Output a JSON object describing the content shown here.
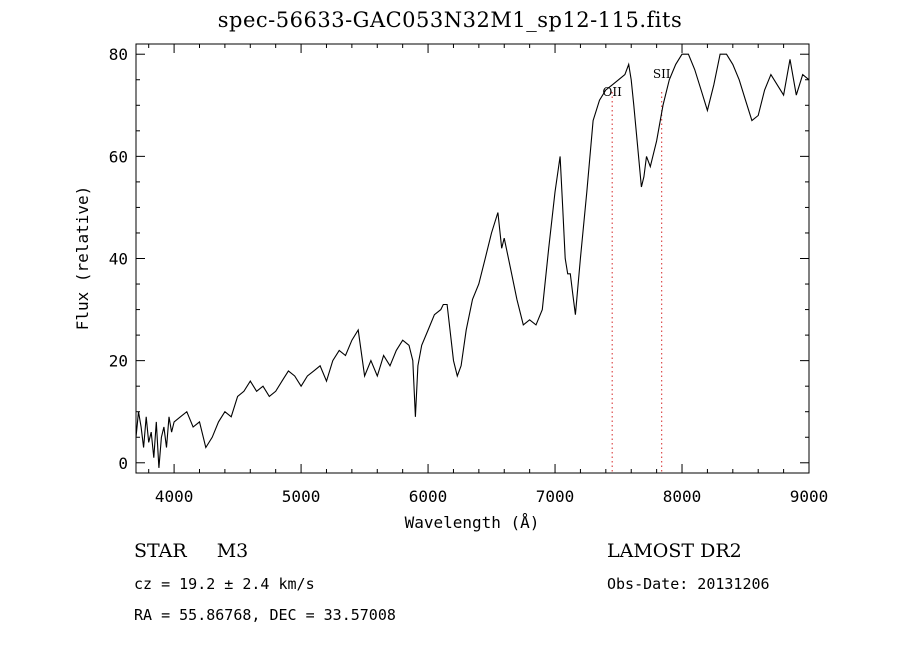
{
  "title": "spec-56633-GAC053N32M1_sp12-115.fits",
  "info": {
    "class": "STAR",
    "subclass": "M3",
    "cz": "cz = 19.2 ± 2.4 km/s",
    "coords": "RA =  55.86768, DEC =  33.57008",
    "survey": "LAMOST DR2",
    "obs_date": "Obs-Date: 20131206"
  },
  "chart_data": {
    "type": "line",
    "title": "spec-56633-GAC053N32M1_sp12-115.fits",
    "xlabel": "Wavelength (Å)",
    "ylabel": "Flux (relative)",
    "xlim": [
      3700,
      9000
    ],
    "ylim": [
      -2,
      82
    ],
    "xticks": [
      4000,
      5000,
      6000,
      7000,
      8000,
      9000
    ],
    "yticks": [
      0,
      20,
      40,
      60,
      80
    ],
    "grid": false,
    "line_color": "#000000",
    "marker_color": "#d62828",
    "lines": [
      {
        "label": "OII",
        "wavelength": 7450
      },
      {
        "label": "SII",
        "wavelength": 7840
      }
    ],
    "series": [
      {
        "x": [
          3700,
          3720,
          3740,
          3760,
          3780,
          3800,
          3820,
          3840,
          3860,
          3880,
          3900,
          3920,
          3940,
          3960,
          3980,
          4000,
          4050,
          4100,
          4150,
          4200,
          4250,
          4300,
          4350,
          4400,
          4450,
          4500,
          4550,
          4600,
          4650,
          4700,
          4750,
          4800,
          4850,
          4900,
          4950,
          5000,
          5050,
          5100,
          5150,
          5200,
          5250,
          5300,
          5350,
          5400,
          5450,
          5500,
          5550,
          5600,
          5650,
          5700,
          5750,
          5800,
          5850,
          5880,
          5900,
          5920,
          5950,
          6000,
          6050,
          6100,
          6120,
          6150,
          6200,
          6230,
          6260,
          6300,
          6350,
          6400,
          6450,
          6500,
          6550,
          6580,
          6600,
          6650,
          6700,
          6750,
          6800,
          6850,
          6900,
          6950,
          7000,
          7040,
          7060,
          7080,
          7100,
          7120,
          7140,
          7160,
          7200,
          7250,
          7300,
          7350,
          7400,
          7450,
          7500,
          7550,
          7580,
          7600,
          7620,
          7650,
          7680,
          7700,
          7720,
          7750,
          7800,
          7850,
          7900,
          7950,
          8000,
          8050,
          8100,
          8150,
          8200,
          8250,
          8300,
          8350,
          8400,
          8450,
          8500,
          8550,
          8600,
          8650,
          8700,
          8750,
          8800,
          8850,
          8900,
          8950,
          9000
        ],
        "y": [
          5,
          10,
          7,
          3,
          9,
          4,
          6,
          1,
          8,
          -1,
          5,
          7,
          3,
          9,
          6,
          8,
          9,
          10,
          7,
          8,
          3,
          5,
          8,
          10,
          9,
          13,
          14,
          16,
          14,
          15,
          13,
          14,
          16,
          18,
          17,
          15,
          17,
          18,
          19,
          16,
          20,
          22,
          21,
          24,
          26,
          17,
          20,
          17,
          21,
          19,
          22,
          24,
          23,
          20,
          9,
          19,
          23,
          26,
          29,
          30,
          31,
          31,
          20,
          17,
          19,
          26,
          32,
          35,
          40,
          45,
          49,
          42,
          44,
          38,
          32,
          27,
          28,
          27,
          30,
          42,
          53,
          60,
          50,
          40,
          37,
          37,
          33,
          29,
          40,
          53,
          67,
          71,
          73,
          74,
          75,
          76,
          78,
          75,
          70,
          62,
          54,
          56,
          60,
          58,
          63,
          70,
          75,
          78,
          80,
          80,
          77,
          73,
          69,
          74,
          80,
          80,
          78,
          75,
          71,
          67,
          68,
          73,
          76,
          74,
          72,
          79,
          72,
          76,
          75
        ]
      }
    ]
  }
}
